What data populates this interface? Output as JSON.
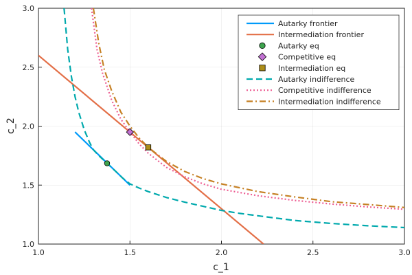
{
  "chart_data": {
    "type": "line",
    "title": "",
    "xlabel": "c_1",
    "ylabel": "c_2",
    "xlim": [
      1.0,
      3.0
    ],
    "ylim": [
      1.0,
      3.0
    ],
    "xticks": [
      1.0,
      1.5,
      2.0,
      2.5,
      3.0
    ],
    "yticks": [
      1.0,
      1.5,
      2.0,
      2.5,
      3.0
    ],
    "xtick_labels": [
      "1.0",
      "1.5",
      "2.0",
      "2.5",
      "3.0"
    ],
    "ytick_labels": [
      "1.0",
      "1.5",
      "2.0",
      "2.5",
      "3.0"
    ],
    "grid": true,
    "legend_position": "top-right",
    "series": [
      {
        "name": "Autarky frontier",
        "kind": "line",
        "color": "#009AFA",
        "dash": "solid",
        "x": [
          1.2,
          1.5
        ],
        "y": [
          1.95,
          1.5
        ]
      },
      {
        "name": "Intermediation frontier",
        "kind": "line",
        "color": "#E36F47",
        "dash": "solid",
        "x": [
          1.0,
          2.23
        ],
        "y": [
          2.6,
          1.0
        ]
      },
      {
        "name": "Autarky eq",
        "kind": "marker",
        "marker": "circle",
        "color": "#3EA44E",
        "x": [
          1.375
        ],
        "y": [
          1.685
        ]
      },
      {
        "name": "Competitive eq",
        "kind": "marker",
        "marker": "diamond",
        "color": "#C271D2",
        "x": [
          1.5
        ],
        "y": [
          1.95
        ]
      },
      {
        "name": "Intermediation eq",
        "kind": "marker",
        "marker": "square",
        "color": "#AC8D18",
        "x": [
          1.6
        ],
        "y": [
          1.82
        ]
      },
      {
        "name": "Autarky indifference",
        "kind": "curve",
        "color": "#00A9AD",
        "dash": "dash",
        "x": [
          1.14,
          1.16,
          1.18,
          1.2,
          1.22,
          1.25,
          1.28,
          1.3,
          1.33,
          1.375,
          1.42,
          1.46,
          1.5,
          1.55,
          1.6,
          1.7,
          1.8,
          1.9,
          2.0,
          2.1,
          2.25,
          2.4,
          2.6,
          2.8,
          3.0
        ],
        "y": [
          3.0,
          2.65,
          2.42,
          2.25,
          2.12,
          1.97,
          1.86,
          1.8,
          1.75,
          1.685,
          1.62,
          1.56,
          1.51,
          1.475,
          1.445,
          1.395,
          1.355,
          1.32,
          1.285,
          1.26,
          1.23,
          1.2,
          1.175,
          1.155,
          1.14
        ]
      },
      {
        "name": "Competitive indifference",
        "kind": "curve",
        "color": "#ED5D92",
        "dash": "dot",
        "x": [
          1.29,
          1.32,
          1.35,
          1.4,
          1.45,
          1.5,
          1.55,
          1.6,
          1.7,
          1.8,
          1.9,
          2.0,
          2.2,
          2.4,
          2.6,
          2.8,
          3.0
        ],
        "y": [
          3.0,
          2.65,
          2.45,
          2.22,
          2.06,
          1.95,
          1.85,
          1.77,
          1.65,
          1.57,
          1.51,
          1.465,
          1.41,
          1.37,
          1.34,
          1.315,
          1.295
        ]
      },
      {
        "name": "Intermediation indifference",
        "kind": "curve",
        "color": "#C68125",
        "dash": "dashdot",
        "x": [
          1.3,
          1.33,
          1.36,
          1.4,
          1.45,
          1.5,
          1.55,
          1.6,
          1.7,
          1.8,
          1.9,
          2.0,
          2.2,
          2.4,
          2.6,
          2.8,
          3.0
        ],
        "y": [
          3.0,
          2.7,
          2.48,
          2.3,
          2.12,
          2.0,
          1.9,
          1.82,
          1.7,
          1.615,
          1.555,
          1.51,
          1.445,
          1.4,
          1.36,
          1.335,
          1.31
        ]
      }
    ]
  }
}
